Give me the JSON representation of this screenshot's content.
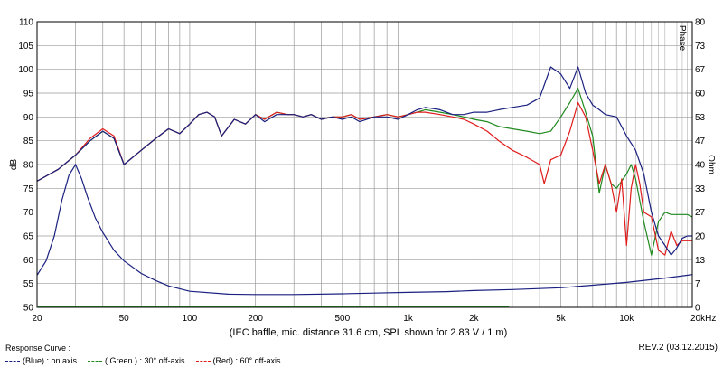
{
  "chart_data": {
    "type": "line",
    "xlabel": "",
    "ylabel_left": "dB",
    "ylabel_right": "Ohm",
    "right_axis_label_top": "Phase",
    "x_scale": "log",
    "xlim": [
      20,
      20000
    ],
    "ylim": [
      50,
      110
    ],
    "ylim_right": [
      0,
      80
    ],
    "grid": true,
    "x_tick_values": [
      20,
      50,
      100,
      200,
      500,
      1000,
      2000,
      5000,
      10000,
      20000
    ],
    "x_tick_labels": [
      "20",
      "50",
      "100",
      "200",
      "500",
      "1k",
      "2k",
      "5k",
      "10k",
      "20kHz"
    ],
    "y_ticks_left": [
      "50",
      "55",
      "60",
      "65",
      "70",
      "75",
      "80",
      "85",
      "90",
      "95",
      "100",
      "105",
      "110"
    ],
    "y_ticks_right": [
      "0",
      "7",
      "13",
      "20",
      "27",
      "33",
      "40",
      "47",
      "53",
      "60",
      "67",
      "73",
      "80"
    ],
    "caption": "(IEC baffle, mic. distance 31.6 cm, SPL shown for 2.83 V / 1 m)",
    "legend_title": "Response Curve :",
    "series": [
      {
        "name": "(Blue) : on axis",
        "color": "#1a2080",
        "x": [
          20,
          25,
          30,
          35,
          40,
          45,
          50,
          60,
          70,
          80,
          90,
          100,
          110,
          120,
          130,
          140,
          160,
          180,
          200,
          220,
          250,
          280,
          300,
          330,
          360,
          400,
          450,
          500,
          550,
          600,
          700,
          800,
          900,
          1000,
          1100,
          1200,
          1400,
          1600,
          1800,
          2000,
          2300,
          2600,
          3000,
          3500,
          4000,
          4500,
          5000,
          5500,
          6000,
          6500,
          7000,
          7500,
          8000,
          9000,
          10000,
          11000,
          12000,
          13000,
          14000,
          15000,
          16000,
          17000,
          18000,
          19000,
          20000
        ],
        "y": [
          76.5,
          79,
          82,
          85,
          87,
          85.5,
          80,
          83,
          85.5,
          87.5,
          86.5,
          88.5,
          90.5,
          91,
          90,
          86,
          89.5,
          88.5,
          90.5,
          89,
          90.5,
          90.5,
          90.5,
          90,
          90.5,
          89.5,
          90,
          89.5,
          90,
          89,
          90,
          90,
          89.5,
          90.5,
          91.5,
          92,
          91.5,
          90.5,
          90.5,
          91,
          91,
          91.5,
          92,
          92.5,
          94,
          100.5,
          99,
          96,
          100.5,
          95,
          92.5,
          91.5,
          90.5,
          90,
          86,
          83,
          78,
          70,
          65,
          63,
          61,
          62.5,
          64.5,
          65,
          65
        ]
      },
      {
        "name": "( Green ) : 30° off-axis",
        "color": "#1f8a1f",
        "x": [
          20,
          25,
          30,
          35,
          40,
          45,
          50,
          60,
          70,
          80,
          90,
          100,
          110,
          120,
          130,
          140,
          160,
          180,
          200,
          220,
          250,
          280,
          300,
          330,
          360,
          400,
          450,
          500,
          550,
          600,
          700,
          800,
          900,
          1000,
          1100,
          1200,
          1400,
          1600,
          1800,
          2000,
          2300,
          2600,
          3000,
          3500,
          4000,
          4500,
          5000,
          5500,
          6000,
          6500,
          7000,
          7500,
          8000,
          8500,
          9000,
          10000,
          10500,
          11000,
          12000,
          13000,
          14000,
          15000,
          16000,
          17000,
          18000,
          19000,
          20000
        ],
        "y": [
          76.5,
          79,
          82,
          85,
          87,
          85.5,
          80,
          83,
          85.5,
          87.5,
          86.5,
          88.5,
          90.5,
          91,
          90,
          86,
          89.5,
          88.5,
          90.5,
          89.5,
          91,
          90.5,
          90.5,
          90,
          90.5,
          89.5,
          90,
          90,
          90.5,
          89.5,
          90,
          90.5,
          90,
          90.5,
          91,
          91.5,
          91,
          90.5,
          90,
          89.5,
          89,
          88,
          87.5,
          87,
          86.5,
          87,
          90,
          93,
          96,
          91,
          86,
          74,
          80,
          76,
          75,
          78,
          80,
          77,
          68,
          61,
          68,
          70,
          69.5,
          69.5,
          69.5,
          69.5,
          69
        ]
      },
      {
        "name": "(Red) : 60° off-axis",
        "color": "#e01b1b",
        "x": [
          20,
          25,
          30,
          35,
          40,
          45,
          50,
          60,
          70,
          80,
          90,
          100,
          110,
          120,
          130,
          140,
          160,
          180,
          200,
          220,
          250,
          280,
          300,
          330,
          360,
          400,
          450,
          500,
          550,
          600,
          700,
          800,
          900,
          1000,
          1100,
          1200,
          1400,
          1600,
          1800,
          2000,
          2300,
          2600,
          3000,
          3500,
          4000,
          4200,
          4500,
          5000,
          5500,
          6000,
          6500,
          7000,
          7500,
          8000,
          8500,
          9000,
          9500,
          10000,
          10500,
          11000,
          11500,
          12000,
          13000,
          14000,
          15000,
          16000,
          17000,
          18000,
          19000,
          20000
        ],
        "y": [
          76.5,
          79,
          82,
          85.5,
          87.5,
          86,
          80,
          83,
          85.5,
          87.5,
          86.5,
          88.5,
          90.5,
          91,
          90,
          86,
          89.5,
          88.5,
          90.5,
          89.5,
          91,
          90.5,
          90.5,
          90,
          90.5,
          89.5,
          90,
          90,
          90.5,
          89.5,
          90,
          90.5,
          90,
          90.5,
          91,
          91,
          90.5,
          90,
          89.5,
          88.5,
          87,
          85,
          83,
          81.5,
          80,
          76,
          81,
          82,
          87,
          93,
          90,
          83,
          76,
          80,
          76,
          70,
          77,
          63,
          75,
          80,
          76,
          70,
          69,
          62,
          61,
          66,
          63,
          64,
          64,
          64
        ]
      }
    ],
    "impedance_curve": {
      "name": "Impedance (Ohm, right axis)",
      "color": "#1a2080",
      "x": [
        20,
        22,
        24,
        26,
        28,
        30,
        32,
        34,
        37,
        40,
        45,
        50,
        60,
        70,
        80,
        100,
        150,
        200,
        300,
        500,
        700,
        1000,
        1500,
        2000,
        3000,
        5000,
        7000,
        10000,
        15000,
        20000
      ],
      "y": [
        9,
        13,
        20,
        30,
        37,
        40,
        36,
        31,
        25,
        21,
        16,
        13,
        9.5,
        7.5,
        6,
        4.5,
        3.7,
        3.6,
        3.6,
        3.8,
        4,
        4.2,
        4.4,
        4.7,
        5,
        5.5,
        6.2,
        7,
        8.2,
        9.2
      ]
    },
    "bottom_line": {
      "color": "#35b035",
      "y": 50,
      "x_end": 2900
    }
  },
  "legend": {
    "title": "Response Curve :",
    "items": [
      {
        "label": "(Blue) : on axis",
        "color": "#1a2080"
      },
      {
        "label": "( Green ) : 30° off-axis",
        "color": "#1f8a1f"
      },
      {
        "label": "(Red) : 60° off-axis",
        "color": "#e01b1b"
      }
    ]
  },
  "revision": "REV.2 (03.12.2015)"
}
